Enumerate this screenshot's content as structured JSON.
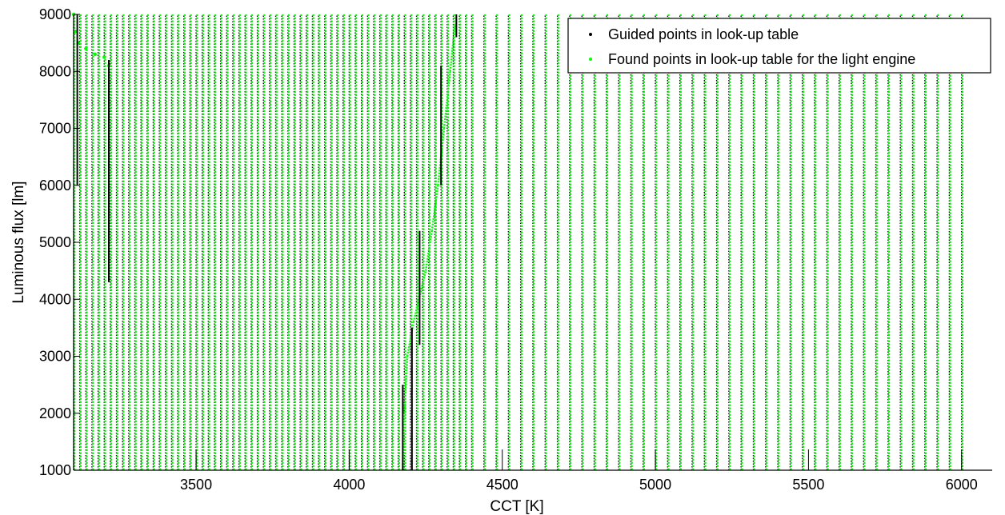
{
  "chart_data": {
    "type": "scatter",
    "title": "",
    "xlabel": "CCT [K]",
    "ylabel": "Luminous flux [lm]",
    "xlim": [
      3100,
      6100
    ],
    "ylim": [
      1000,
      9000
    ],
    "xticks": [
      3500,
      4000,
      4500,
      5000,
      5500,
      6000
    ],
    "yticks": [
      1000,
      2000,
      3000,
      4000,
      5000,
      6000,
      7000,
      8000,
      9000
    ],
    "grid": false,
    "legend_position": "top-right",
    "series": [
      {
        "name": "Guided points in look-up table",
        "color": "#000000",
        "marker": "dot",
        "grid_x_start": 3100,
        "cct_step_low": 20,
        "cct_step_high": 40,
        "cct_step_change_at": 4400,
        "x_max": 6020,
        "flux_step": 100,
        "y_range": [
          1000,
          9000
        ]
      },
      {
        "name": "Found points in look-up table for the light engine",
        "color": "#00ff00",
        "marker": "dot",
        "note_regions": [
          {
            "x_range": [
              3100,
              3240
            ],
            "y_range": [
              6000,
              9000
            ]
          },
          {
            "x_range": [
              4160,
              4360
            ],
            "y_range": [
              1000,
              9000
            ]
          }
        ]
      }
    ]
  }
}
